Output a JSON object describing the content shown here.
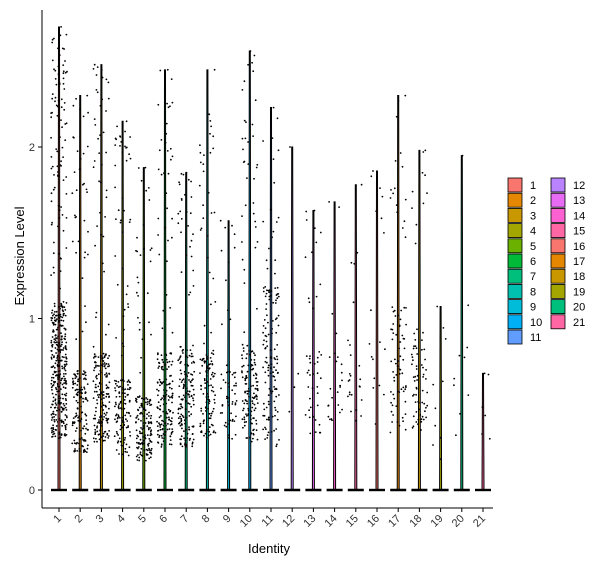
{
  "chart_data": {
    "type": "violin",
    "xlabel": "Identity",
    "ylabel": "Expression Level",
    "yticks": [
      0,
      1,
      2
    ],
    "ylim": [
      -0.12,
      2.78
    ],
    "categories": [
      "1",
      "2",
      "3",
      "4",
      "5",
      "6",
      "7",
      "8",
      "9",
      "10",
      "11",
      "12",
      "13",
      "14",
      "15",
      "16",
      "17",
      "18",
      "19",
      "20",
      "21"
    ],
    "colors": [
      "#F8766D",
      "#E58700",
      "#C99800",
      "#A3A500",
      "#6BB100",
      "#00BA38",
      "#00BF7D",
      "#00C0AF",
      "#00BCD8",
      "#00B0F6",
      "#619CFF",
      "#B983FF",
      "#E76BF3",
      "#FD61D1",
      "#FF67A4",
      "#F8766D",
      "#E58700",
      "#C99800",
      "#A3A500",
      "#00BF7D",
      "#FF67A4"
    ],
    "max_values": [
      2.7,
      2.3,
      2.48,
      2.15,
      1.88,
      2.45,
      1.85,
      2.45,
      1.57,
      2.56,
      2.23,
      2.0,
      1.63,
      1.68,
      1.78,
      1.86,
      2.3,
      1.98,
      1.07,
      1.95,
      0.68
    ],
    "dense_low": [
      0.3,
      0.22,
      0.28,
      0.2,
      0.17,
      0.25,
      0.25,
      0.3,
      0.28,
      0.28,
      0.25,
      0.3,
      0.32,
      0.4,
      0.4,
      0.35,
      0.33,
      0.35,
      0.15,
      0.3,
      0.28
    ],
    "dense_high": [
      1.1,
      0.7,
      0.8,
      0.65,
      0.55,
      0.8,
      0.85,
      0.8,
      0.7,
      0.85,
      1.2,
      0.7,
      0.8,
      0.8,
      0.8,
      0.9,
      1.1,
      1.0,
      0.7,
      0.9,
      0.6
    ],
    "nonzero_counts": [
      420,
      170,
      200,
      150,
      160,
      180,
      170,
      130,
      60,
      160,
      140,
      4,
      45,
      25,
      25,
      18,
      80,
      70,
      10,
      10,
      6
    ],
    "legend": {
      "placement": "right",
      "columns": [
        [
          "1",
          "2",
          "3",
          "4",
          "5",
          "6",
          "7",
          "8",
          "9",
          "10",
          "11"
        ],
        [
          "12",
          "13",
          "14",
          "15",
          "16",
          "17",
          "18",
          "19",
          "20",
          "21"
        ]
      ]
    }
  }
}
